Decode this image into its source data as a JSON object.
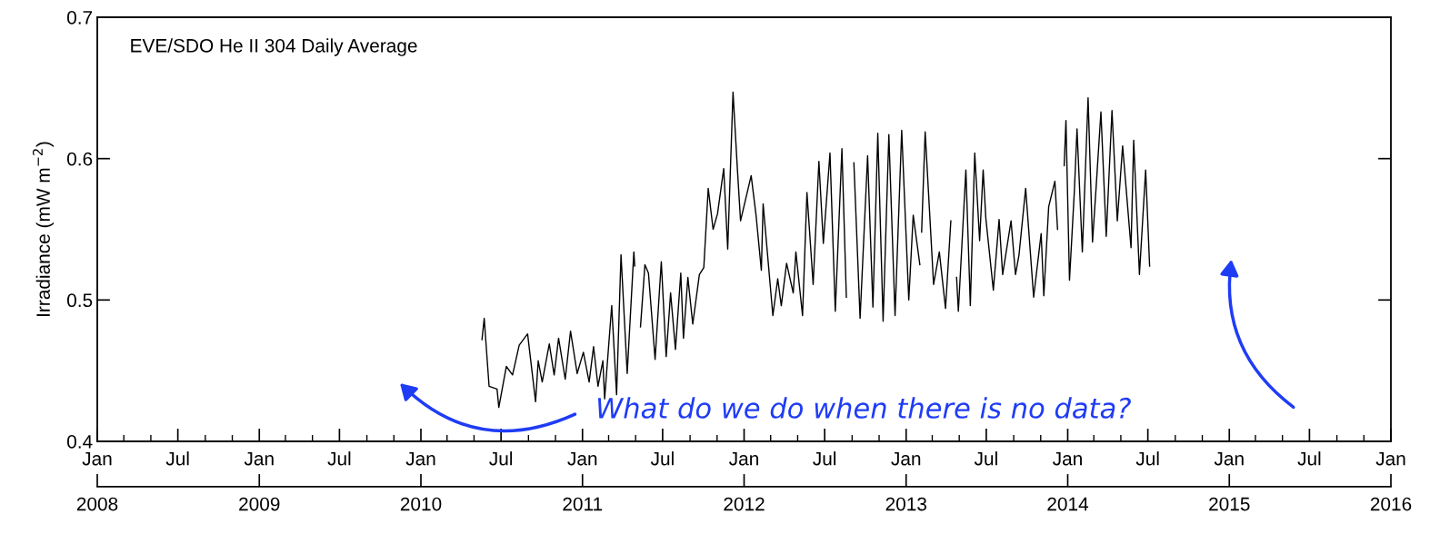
{
  "chart_data": {
    "type": "line",
    "title": "EVE/SDO He II 304 Daily Average",
    "ylabel": "Irradiance (mW m$^{−2}$)",
    "x": [
      "2010-05-19",
      "2010-05-24",
      "2010-06-04",
      "2010-06-22",
      "2010-06-26",
      "2010-07-13",
      "2010-07-27",
      "2010-08-11",
      "2010-08-30",
      "2010-09-17",
      "2010-09-23",
      "2010-10-02",
      "2010-10-18",
      "2010-10-29",
      "2010-11-08",
      "2010-11-23",
      "2010-12-05",
      "2010-12-20",
      "2011-01-03",
      "2011-01-16",
      "2011-01-26",
      "2011-02-05",
      "2011-02-16",
      "2011-02-20",
      "2011-03-08",
      "2011-03-19",
      "2011-03-29",
      "2011-04-12",
      "2011-04-27",
      "2011-04-29",
      "2011-05-05",
      "2011-05-12",
      "2011-05-22",
      "2011-05-30",
      "2011-06-14",
      "2011-06-28",
      "2011-07-09",
      "2011-07-19",
      "2011-07-30",
      "2011-08-11",
      "2011-08-17",
      "2011-08-27",
      "2011-09-07",
      "2011-09-22",
      "2011-10-02",
      "2011-10-12",
      "2011-10-23",
      "2011-11-02",
      "2011-11-16",
      "2011-11-25",
      "2011-12-07",
      "2011-12-17",
      "2011-12-24",
      "2012-01-17",
      "2012-01-28",
      "2012-02-09",
      "2012-02-13",
      "2012-03-06",
      "2012-03-17",
      "2012-03-25",
      "2012-04-06",
      "2012-04-21",
      "2012-04-27",
      "2012-05-12",
      "2012-05-22",
      "2012-06-05",
      "2012-06-18",
      "2012-06-28",
      "2012-07-13",
      "2012-07-25",
      "2012-08-09",
      "2012-08-19",
      "2012-08-26",
      "2012-09-05",
      "2012-09-19",
      "2012-10-06",
      "2012-10-18",
      "2012-10-29",
      "2012-11-10",
      "2012-11-23",
      "2012-12-07",
      "2012-12-22",
      "2013-01-07",
      "2013-01-17",
      "2013-02-01",
      "2013-02-03",
      "2013-02-05",
      "2013-02-13",
      "2013-03-04",
      "2013-03-17",
      "2013-03-31",
      "2013-04-12",
      "2013-04-21",
      "2013-04-25",
      "2013-04-29",
      "2013-05-16",
      "2013-05-26",
      "2013-06-05",
      "2013-06-16",
      "2013-06-24",
      "2013-06-30",
      "2013-07-17",
      "2013-07-30",
      "2013-08-07",
      "2013-08-26",
      "2013-09-05",
      "2013-09-13",
      "2013-09-28",
      "2013-10-16",
      "2013-11-02",
      "2013-11-08",
      "2013-11-19",
      "2013-12-03",
      "2013-12-09",
      "2013-12-17",
      "2013-12-24",
      "2013-12-28",
      "2014-01-05",
      "2014-01-16",
      "2014-01-22",
      "2014-02-03",
      "2014-02-16",
      "2014-02-26",
      "2014-03-06",
      "2014-03-17",
      "2014-03-29",
      "2014-04-11",
      "2014-04-23",
      "2014-05-05",
      "2014-05-24",
      "2014-05-30",
      "2014-06-12",
      "2014-06-26",
      "2014-07-05"
    ],
    "series": [
      {
        "color": "#000000",
        "values": [
          0.472,
          0.487,
          0.439,
          0.437,
          0.424,
          0.453,
          0.447,
          0.468,
          0.476,
          0.428,
          0.457,
          0.442,
          0.469,
          0.447,
          0.473,
          0.444,
          0.478,
          0.448,
          0.463,
          0.442,
          0.467,
          0.439,
          0.457,
          0.43,
          0.496,
          0.433,
          0.532,
          0.448,
          0.534,
          0.524,
          null,
          0.481,
          0.525,
          0.519,
          0.458,
          0.527,
          0.46,
          0.505,
          0.465,
          0.519,
          0.473,
          0.516,
          0.483,
          0.518,
          0.523,
          0.579,
          0.55,
          0.561,
          0.593,
          0.536,
          0.647,
          0.592,
          0.556,
          0.588,
          0.56,
          0.521,
          0.568,
          0.489,
          0.515,
          0.496,
          0.526,
          0.505,
          0.534,
          0.489,
          0.576,
          0.511,
          0.598,
          0.54,
          0.604,
          0.492,
          0.607,
          0.502,
          null,
          0.597,
          0.487,
          0.602,
          0.495,
          0.618,
          0.485,
          0.617,
          0.489,
          0.62,
          0.5,
          0.56,
          0.525,
          null,
          0.548,
          0.619,
          0.511,
          0.534,
          0.494,
          0.556,
          null,
          0.516,
          0.492,
          0.592,
          0.496,
          0.604,
          0.542,
          0.592,
          0.558,
          0.507,
          0.557,
          0.518,
          0.556,
          0.518,
          0.532,
          0.579,
          0.502,
          0.547,
          0.503,
          0.566,
          0.584,
          0.55,
          null,
          0.595,
          0.627,
          0.514,
          0.577,
          0.621,
          0.534,
          0.643,
          0.541,
          0.579,
          0.633,
          0.545,
          0.634,
          0.556,
          0.609,
          0.537,
          0.613,
          0.518,
          0.592,
          0.524
        ]
      }
    ],
    "xlim": [
      "2008-01-01",
      "2016-01-01"
    ],
    "xticks": [
      {
        "value": "2008-01-01",
        "label": "Jan"
      },
      {
        "value": "2008-07-01",
        "label": "Jul"
      },
      {
        "value": "2009-01-01",
        "label": "Jan"
      },
      {
        "value": "2009-07-01",
        "label": "Jul"
      },
      {
        "value": "2010-01-01",
        "label": "Jan"
      },
      {
        "value": "2010-07-01",
        "label": "Jul"
      },
      {
        "value": "2011-01-01",
        "label": "Jan"
      },
      {
        "value": "2011-07-01",
        "label": "Jul"
      },
      {
        "value": "2012-01-01",
        "label": "Jan"
      },
      {
        "value": "2012-07-01",
        "label": "Jul"
      },
      {
        "value": "2013-01-01",
        "label": "Jan"
      },
      {
        "value": "2013-07-01",
        "label": "Jul"
      },
      {
        "value": "2014-01-01",
        "label": "Jan"
      },
      {
        "value": "2014-07-01",
        "label": "Jul"
      },
      {
        "value": "2015-01-01",
        "label": "Jan"
      },
      {
        "value": "2015-07-01",
        "label": "Jul"
      },
      {
        "value": "2016-01-01",
        "label": "Jan"
      }
    ],
    "x2lim": [
      "2008-01-01",
      "2016-01-01"
    ],
    "x2ticks": [
      {
        "value": "2008-01-01",
        "label": "2008"
      },
      {
        "value": "2009-01-01",
        "label": "2009"
      },
      {
        "value": "2010-01-01",
        "label": "2010"
      },
      {
        "value": "2011-01-01",
        "label": "2011"
      },
      {
        "value": "2012-01-01",
        "label": "2012"
      },
      {
        "value": "2013-01-01",
        "label": "2013"
      },
      {
        "value": "2014-01-01",
        "label": "2014"
      },
      {
        "value": "2015-01-01",
        "label": "2015"
      },
      {
        "value": "2016-01-01",
        "label": "2016"
      }
    ],
    "ylim": [
      0.4,
      0.7
    ],
    "yticks": [
      0.4,
      0.5,
      0.6,
      0.7
    ],
    "grid": false,
    "legend": false,
    "line_style": "solid",
    "marker": "none",
    "annotations": [
      "What do we do when there is no data?"
    ]
  }
}
